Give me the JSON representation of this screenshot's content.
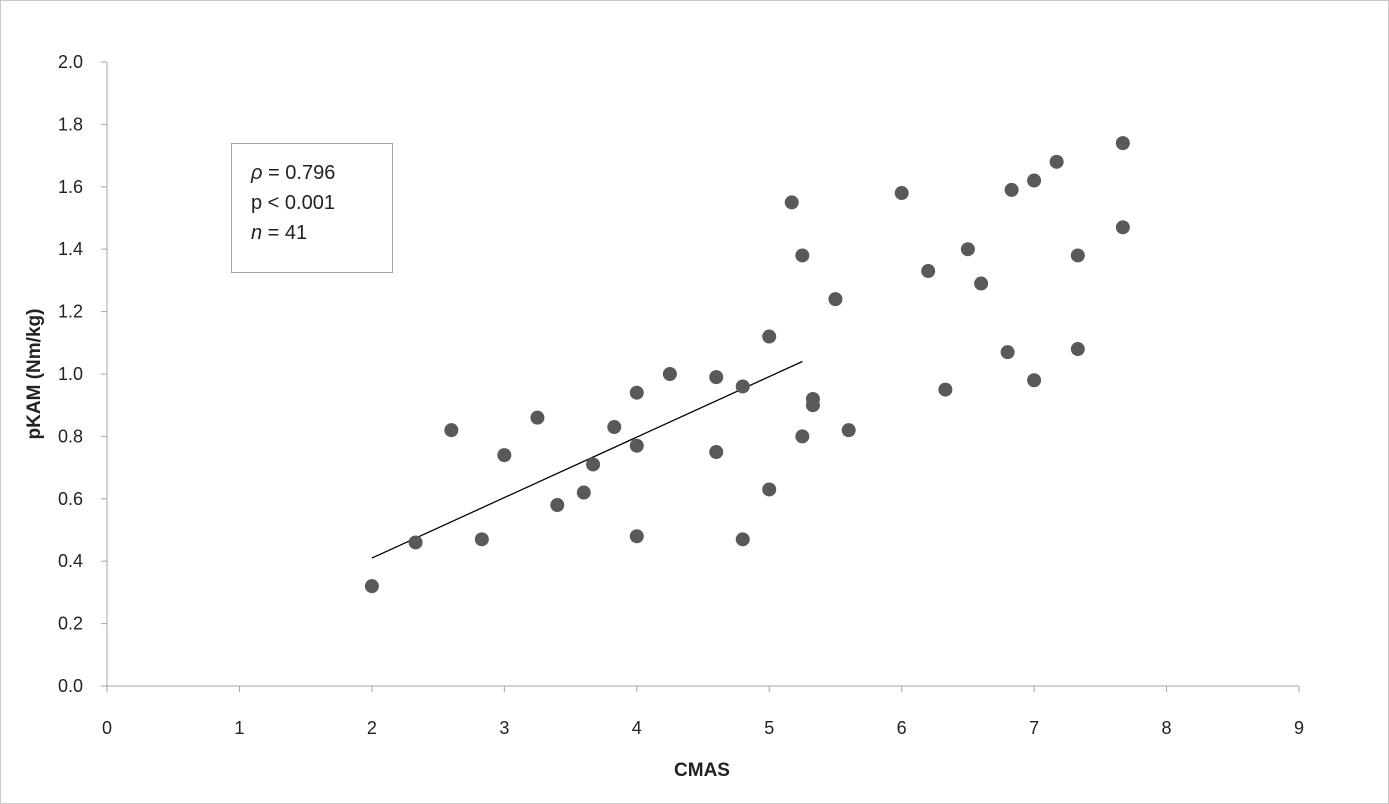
{
  "chart_data": {
    "type": "scatter",
    "title": "",
    "xlabel": "CMAS",
    "ylabel": "pKAM (Nm/kg)",
    "xlim": [
      0,
      9
    ],
    "ylim": [
      0,
      2.0
    ],
    "x_ticks": [
      "0",
      "1",
      "2",
      "3",
      "4",
      "5",
      "6",
      "7",
      "8",
      "9"
    ],
    "y_ticks": [
      "0.0",
      "0.2",
      "0.4",
      "0.6",
      "0.8",
      "1.0",
      "1.2",
      "1.4",
      "1.6",
      "1.8",
      "2.0"
    ],
    "grid": false,
    "legend": "none",
    "marker_color": "#595959",
    "points": [
      [
        2.0,
        0.32
      ],
      [
        2.33,
        0.46
      ],
      [
        2.6,
        0.82
      ],
      [
        2.83,
        0.47
      ],
      [
        3.0,
        0.74
      ],
      [
        3.25,
        0.86
      ],
      [
        3.4,
        0.58
      ],
      [
        3.6,
        0.62
      ],
      [
        3.67,
        0.71
      ],
      [
        3.83,
        0.83
      ],
      [
        4.0,
        0.94
      ],
      [
        4.0,
        0.77
      ],
      [
        4.0,
        0.48
      ],
      [
        4.25,
        1.0
      ],
      [
        4.6,
        0.99
      ],
      [
        4.6,
        0.75
      ],
      [
        4.8,
        0.96
      ],
      [
        4.8,
        0.47
      ],
      [
        5.0,
        1.12
      ],
      [
        5.0,
        0.63
      ],
      [
        5.17,
        1.55
      ],
      [
        5.25,
        1.38
      ],
      [
        5.25,
        0.8
      ],
      [
        5.33,
        0.92
      ],
      [
        5.33,
        0.9
      ],
      [
        5.5,
        1.24
      ],
      [
        5.6,
        0.82
      ],
      [
        6.0,
        1.58
      ],
      [
        6.2,
        1.33
      ],
      [
        6.33,
        0.95
      ],
      [
        6.5,
        1.4
      ],
      [
        6.6,
        1.29
      ],
      [
        6.8,
        1.07
      ],
      [
        6.83,
        1.59
      ],
      [
        7.0,
        1.62
      ],
      [
        7.0,
        0.98
      ],
      [
        7.17,
        1.68
      ],
      [
        7.33,
        1.38
      ],
      [
        7.33,
        1.08
      ],
      [
        7.67,
        1.74
      ],
      [
        7.67,
        1.47
      ]
    ],
    "trendline": {
      "x": [
        2.0,
        5.25
      ],
      "y": [
        0.41,
        1.04
      ]
    },
    "annotation": {
      "rho_symbol": "ρ",
      "rho_value": " = 0.796",
      "p_text": "p < 0.001",
      "n_symbol": "n",
      "n_value": " = 41"
    }
  }
}
